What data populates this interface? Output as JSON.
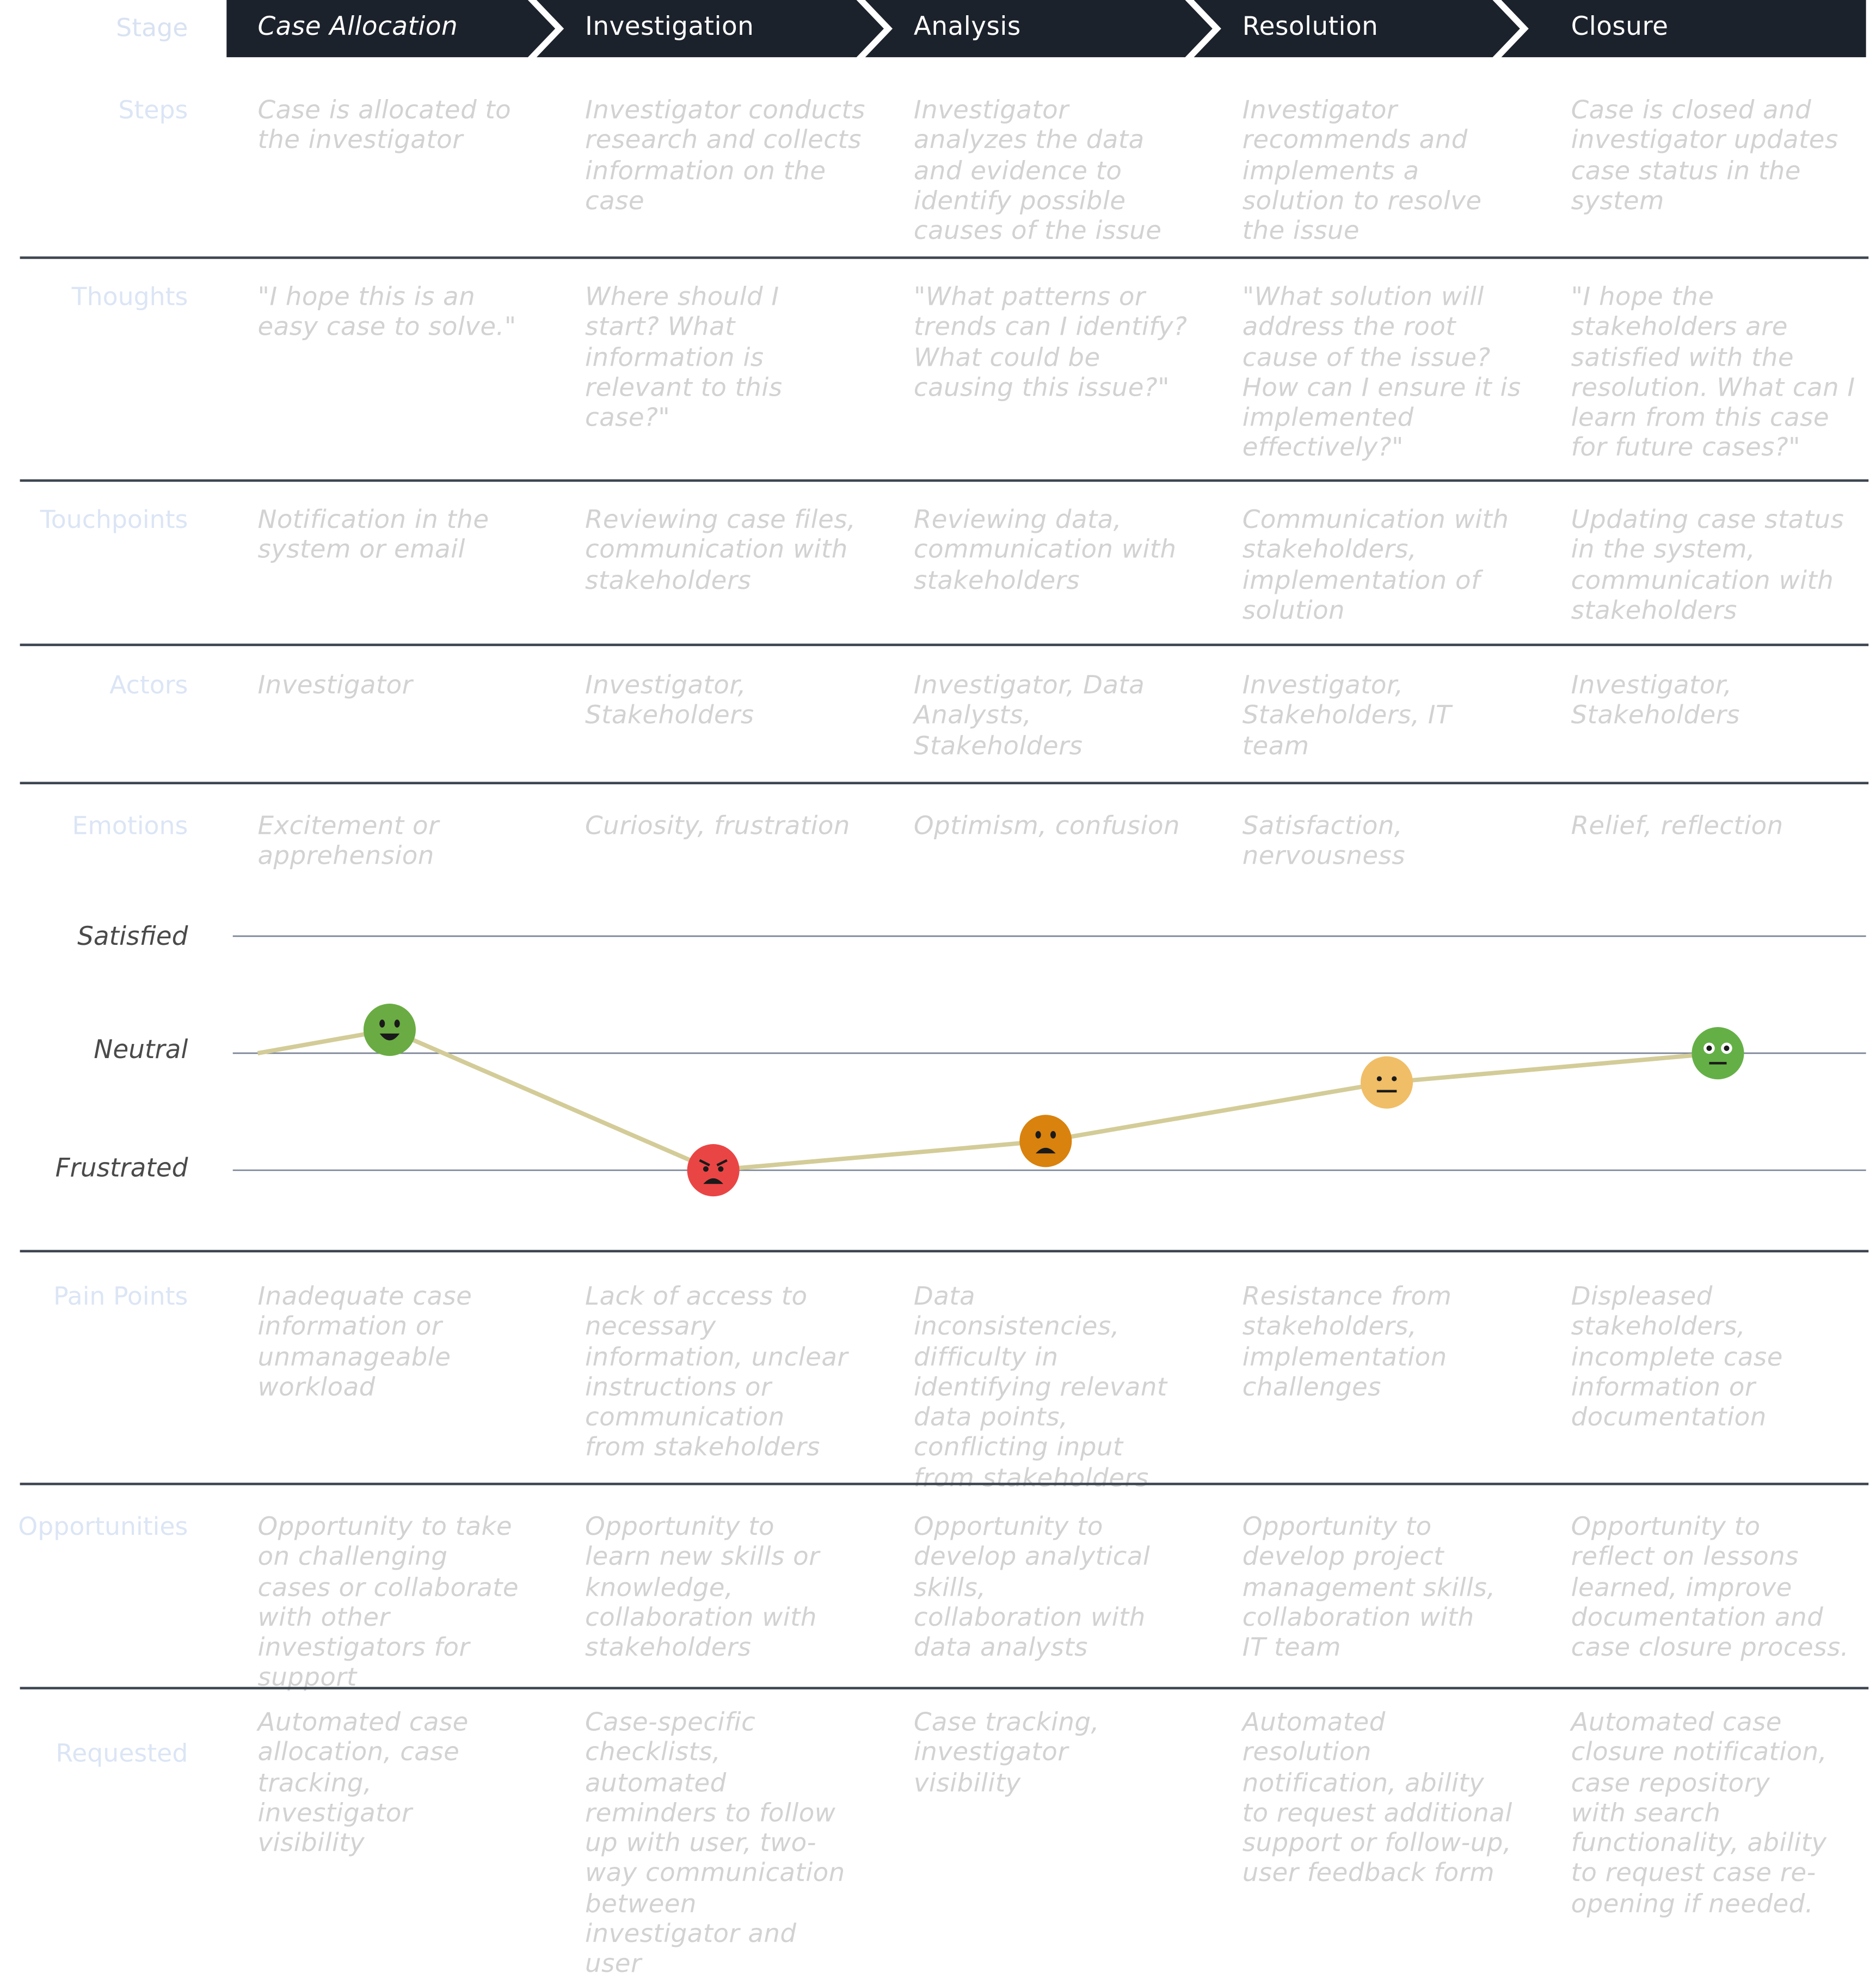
{
  "stages": [
    "Case Allocation",
    "Investigation",
    "Analysis",
    "Resolution",
    "Closure"
  ],
  "colors": {
    "stage_bar": "#1c222b",
    "row_label": "#dbe5f5",
    "cell_text": "#d2d2d2",
    "divider": "#3e4651",
    "curve": "#d3cc98",
    "face_green": "#6aac43",
    "face_red": "#ea4545",
    "face_orange": "#d9820d",
    "face_tan": "#f0be67",
    "face_green2": "#64b046"
  },
  "rows": [
    {
      "label": "Stage"
    },
    {
      "label": "Steps",
      "cells": [
        "Case is allocated to the investigator",
        "Investigator conducts research and collects information on the case",
        "Investigator analyzes the data and evidence to identify possible causes of the issue",
        "Investigator recommends and implements a solution to resolve the issue",
        "Case is closed and investigator updates case status in the system"
      ]
    },
    {
      "label": "Thoughts",
      "cells": [
        "\"I hope this is an easy case to solve.\"",
        "Where should I start? What information is relevant to this case?\"",
        "\"What patterns or trends can I identify? What could be causing this issue?\"",
        "\"What solution will address the root cause of the issue? How can I ensure it is implemented effectively?\"",
        "\"I hope the stakeholders are satisfied with the resolution. What can I learn from this case for future cases?\""
      ]
    },
    {
      "label": "Touchpoints",
      "cells": [
        "Notification in the system or email",
        "Reviewing case files, communication with stakeholders",
        "Reviewing data, communication with stakeholders",
        "Communication with stakeholders, implementation of solution",
        "Updating case status in the system, communication with stakeholders"
      ]
    },
    {
      "label": "Actors",
      "cells": [
        "Investigator",
        "Investigator, Stakeholders",
        "Investigator, Data Analysts, Stakeholders",
        "Investigator, Stakeholders, IT team",
        "Investigator, Stakeholders"
      ]
    },
    {
      "label": "Emotions",
      "cells": [
        "Excitement or apprehension",
        "Curiosity, frustration",
        "Optimism, confusion",
        "Satisfaction, nervousness",
        "Relief, reflection"
      ]
    },
    {
      "label": "Pain Points",
      "cells": [
        "Inadequate case information or unmanageable workload",
        "Lack of access to necessary information, unclear instructions or communication from stakeholders",
        "Data inconsistencies, difficulty in identifying relevant data points, conflicting input from stakeholders",
        "Resistance from stakeholders, implementation challenges",
        "Displeased stakeholders, incomplete case information or documentation"
      ]
    },
    {
      "label": "Opportunities",
      "cells": [
        "Opportunity to take on challenging cases or collaborate with other investigators for support",
        "Opportunity to learn new skills or knowledge, collaboration with stakeholders",
        "Opportunity to develop analytical skills, collaboration with data analysts",
        "Opportunity to develop project management skills, collaboration with IT team",
        "Opportunity to reflect on lessons learned, improve documentation and case closure process."
      ]
    },
    {
      "label": "Requested",
      "cells": [
        "Automated case allocation, case tracking, investigator visibility",
        "Case-specific checklists, automated reminders to follow up with user, two-way communication between investigator and user",
        "Case tracking, investigator visibility",
        "Automated resolution notification, ability to request additional support or follow-up, user feedback form",
        "Automated case closure notification, case repository with search functionality, ability to request case re-opening if needed."
      ]
    }
  ],
  "emotion_levels": [
    "Satisfied",
    "Neutral",
    "Frustrated"
  ],
  "emotion_curve": {
    "levels_scale": "1 = Frustrated, 2 = Neutral, 3 = Satisfied",
    "faces": [
      {
        "stage": "Case Allocation",
        "level": 2.2,
        "mood": "happy",
        "color_key": "face_green"
      },
      {
        "stage": "Investigation",
        "level": 1.0,
        "mood": "angry",
        "color_key": "face_red"
      },
      {
        "stage": "Analysis",
        "level": 1.25,
        "mood": "sad",
        "color_key": "face_orange"
      },
      {
        "stage": "Resolution",
        "level": 1.75,
        "mood": "neutral",
        "color_key": "face_tan"
      },
      {
        "stage": "Closure",
        "level": 2.0,
        "mood": "neutral-eyes",
        "color_key": "face_green2"
      }
    ]
  }
}
